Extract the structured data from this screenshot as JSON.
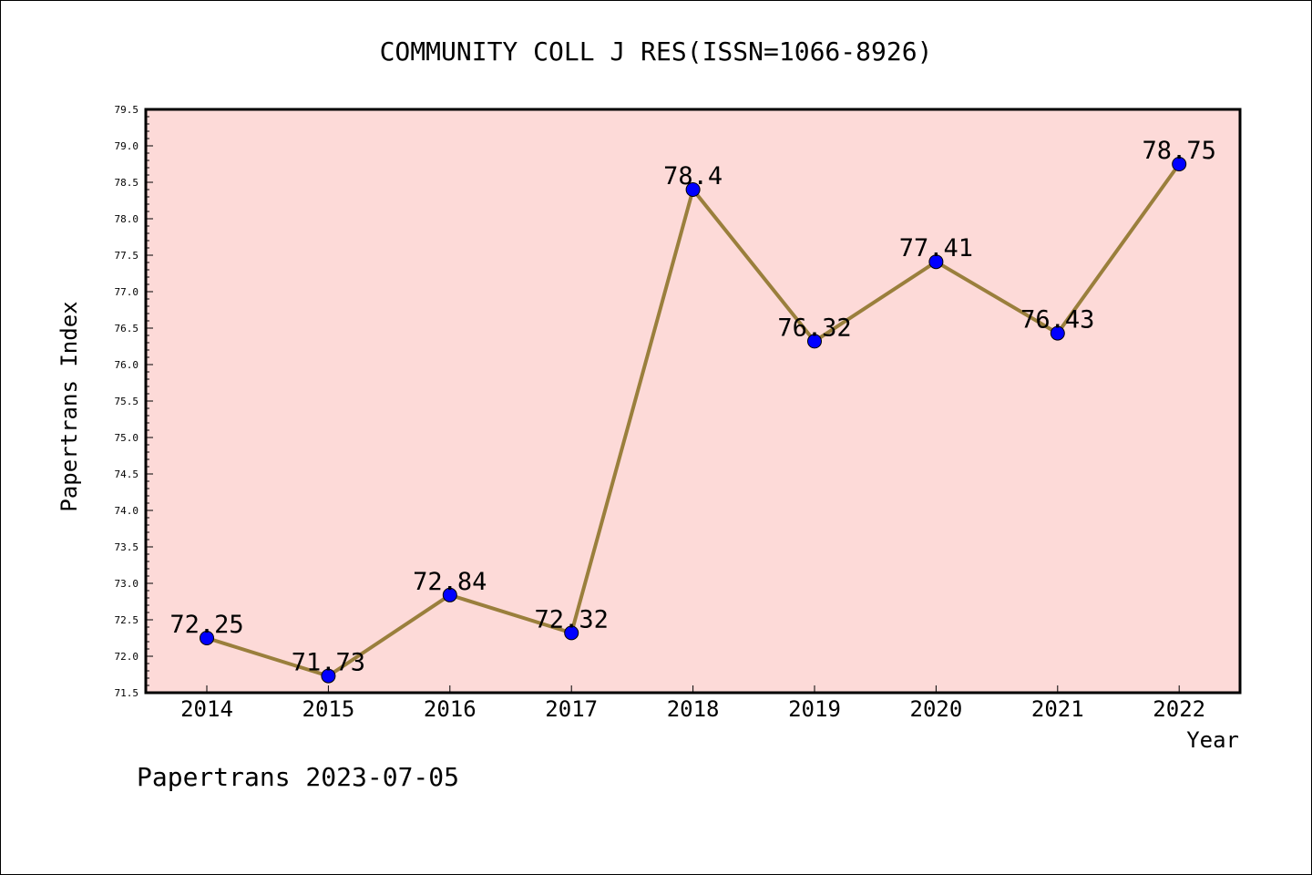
{
  "chart_data": {
    "type": "line",
    "title": "COMMUNITY COLL J RES(ISSN=1066-8926)",
    "xlabel": "Year",
    "ylabel": "Papertrans Index",
    "x": [
      "2014",
      "2015",
      "2016",
      "2017",
      "2018",
      "2019",
      "2020",
      "2021",
      "2022"
    ],
    "series": [
      {
        "values": [
          72.25,
          71.73,
          72.84,
          72.32,
          78.4,
          76.32,
          77.41,
          76.43,
          78.75
        ],
        "data_labels": [
          "72.25",
          "71.73",
          "72.84",
          "72.32",
          "78.4",
          "76.32",
          "77.41",
          "76.43",
          "78.75"
        ]
      }
    ],
    "ylim": [
      71.5,
      79.5
    ],
    "y_ticks": [
      "71.5",
      "72.0",
      "72.5",
      "73.0",
      "73.5",
      "74.0",
      "74.5",
      "75.0",
      "75.5",
      "76.0",
      "76.5",
      "77.0",
      "77.5",
      "78.0",
      "78.5",
      "79.0",
      "79.5"
    ],
    "grid": false,
    "colors": {
      "plot_background": "#fddad8",
      "line": "#9a7f3c",
      "marker": "#0000ff"
    }
  },
  "footer": "Papertrans 2023-07-05"
}
